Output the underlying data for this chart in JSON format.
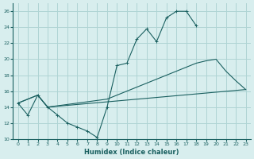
{
  "xlabel": "Humidex (Indice chaleur)",
  "bg_color": "#d8eeee",
  "grid_color": "#afd4d4",
  "line_color": "#1a6060",
  "xlim": [
    -0.5,
    23.5
  ],
  "ylim": [
    10,
    27
  ],
  "xticks": [
    0,
    1,
    2,
    3,
    4,
    5,
    6,
    7,
    8,
    9,
    10,
    11,
    12,
    13,
    14,
    15,
    16,
    17,
    18,
    19,
    20,
    21,
    22,
    23
  ],
  "yticks": [
    10,
    12,
    14,
    16,
    18,
    20,
    22,
    24,
    26
  ],
  "curve1_x": [
    0,
    1,
    2,
    3,
    4,
    5,
    6,
    7,
    8,
    9,
    10,
    11,
    12,
    13,
    14,
    15,
    16,
    17,
    18
  ],
  "curve1_y": [
    14.5,
    13.0,
    15.5,
    14.0,
    13.0,
    12.0,
    11.5,
    11.0,
    10.2,
    14.0,
    19.2,
    19.5,
    22.5,
    23.8,
    22.2,
    25.2,
    26.0,
    26.0,
    24.2
  ],
  "curve2_x": [
    0,
    2,
    3,
    23
  ],
  "curve2_y": [
    14.5,
    15.5,
    14.0,
    16.2
  ],
  "curve3_x": [
    0,
    2,
    3,
    9,
    10,
    11,
    12,
    13,
    14,
    15,
    16,
    17,
    18,
    19,
    20,
    21,
    22,
    23
  ],
  "curve3_y": [
    14.5,
    15.5,
    14.0,
    15.0,
    15.5,
    16.0,
    16.5,
    17.0,
    17.5,
    18.0,
    18.5,
    19.0,
    19.5,
    19.8,
    20.0,
    18.5,
    17.3,
    16.2
  ]
}
